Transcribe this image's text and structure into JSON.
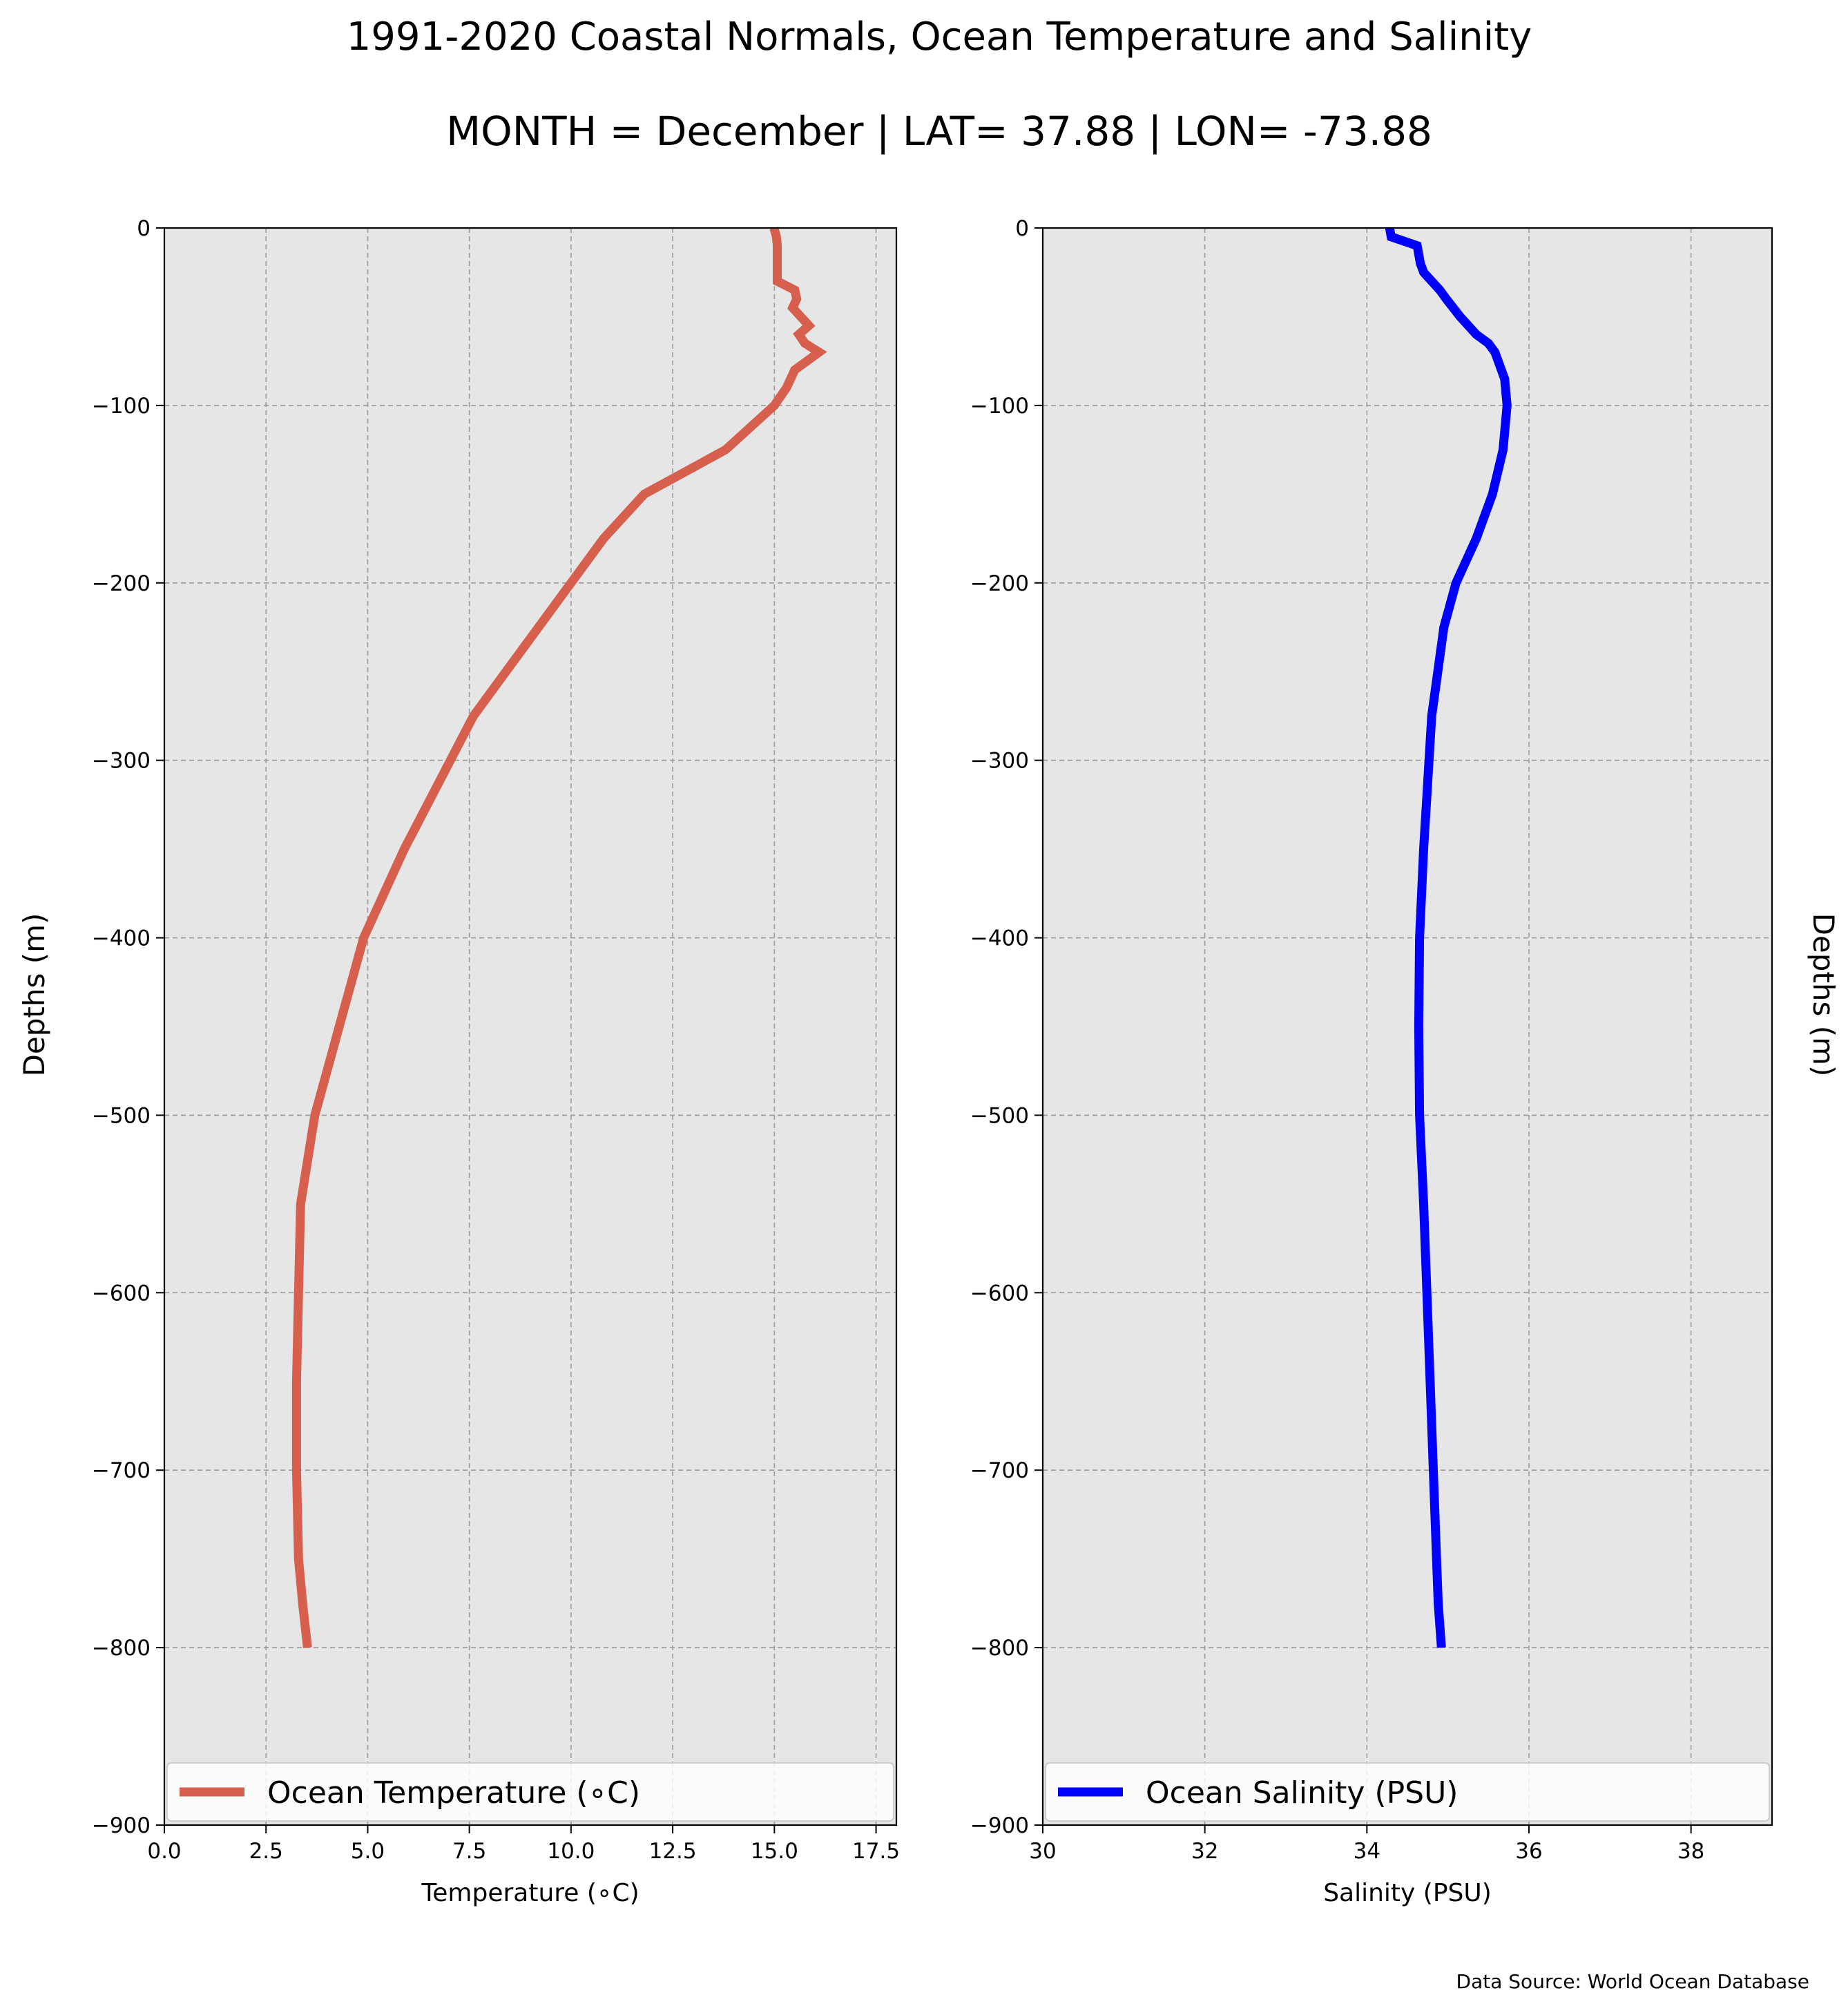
{
  "figure": {
    "title": "1991-2020 Coastal Normals, Ocean Temperature and Salinity",
    "subtitle": "MONTH = December | LAT= 37.88 | LON= -73.88",
    "source_note": "Data Source: World Ocean Database",
    "left_ylabel": "Depths (m)",
    "right_ylabel": "Depths (m)"
  },
  "chart_data": [
    {
      "type": "line",
      "xlabel": "Temperature (∘C)",
      "ylabel": "Depths (m)",
      "xlim": [
        0,
        18
      ],
      "ylim": [
        -900,
        0
      ],
      "xticks": [
        0,
        2.5,
        5,
        7.5,
        10,
        12.5,
        15,
        17.5
      ],
      "xtick_labels": [
        "0.0",
        "2.5",
        "5.0",
        "7.5",
        "10.0",
        "12.5",
        "15.0",
        "17.5"
      ],
      "yticks": [
        0,
        -100,
        -200,
        -300,
        -400,
        -500,
        -600,
        -700,
        -800,
        -900
      ],
      "ytick_labels": [
        "0",
        "−100",
        "−200",
        "−300",
        "−400",
        "−500",
        "−600",
        "−700",
        "−800",
        "−900"
      ],
      "grid": true,
      "legend_position": "lower center",
      "series": [
        {
          "name": "Ocean Temperature (∘C)",
          "color": "#d6604d",
          "x": [
            14.99,
            15.05,
            15.07,
            15.07,
            15.07,
            15.5,
            15.55,
            15.45,
            15.85,
            15.6,
            15.75,
            16.1,
            15.8,
            15.5,
            15.3,
            15.0,
            13.8,
            11.8,
            10.8,
            10.0,
            9.2,
            7.6,
            5.9,
            4.9,
            4.3,
            4.0,
            3.7,
            3.35,
            3.3,
            3.25,
            3.25,
            3.3,
            3.4,
            3.52
          ],
          "y": [
            0,
            -5,
            -10,
            -20,
            -30,
            -35,
            -40,
            -45,
            -55,
            -60,
            -65,
            -70,
            -75,
            -80,
            -90,
            -100,
            -125,
            -150,
            -175,
            -200,
            -225,
            -275,
            -350,
            -400,
            -450,
            -475,
            -500,
            -550,
            -600,
            -650,
            -700,
            -750,
            -775,
            -800
          ]
        }
      ]
    },
    {
      "type": "line",
      "xlabel": "Salinity (PSU)",
      "ylabel": "Depths (m)",
      "xlim": [
        30,
        39
      ],
      "ylim": [
        -900,
        0
      ],
      "xticks": [
        30,
        32,
        34,
        36,
        38
      ],
      "xtick_labels": [
        "30",
        "32",
        "34",
        "36",
        "38"
      ],
      "yticks": [
        0,
        -100,
        -200,
        -300,
        -400,
        -500,
        -600,
        -700,
        -800,
        -900
      ],
      "ytick_labels": [
        "0",
        "−100",
        "−200",
        "−300",
        "−400",
        "−500",
        "−600",
        "−700",
        "−800",
        "−900"
      ],
      "grid": true,
      "legend_position": "lower center",
      "series": [
        {
          "name": "Ocean Salinity (PSU)",
          "color": "#0000ff",
          "x": [
            34.28,
            34.3,
            34.62,
            34.66,
            34.7,
            34.8,
            34.9,
            34.98,
            35.15,
            35.25,
            35.35,
            35.5,
            35.58,
            35.62,
            35.7,
            35.73,
            35.68,
            35.55,
            35.35,
            35.1,
            34.95,
            34.8,
            34.7,
            34.65,
            34.64,
            34.65,
            34.7,
            34.78,
            34.82,
            34.86,
            34.88,
            34.92
          ],
          "y": [
            0,
            -5,
            -10,
            -20,
            -25,
            -30,
            -35,
            -40,
            -50,
            -55,
            -60,
            -65,
            -70,
            -75,
            -85,
            -100,
            -125,
            -150,
            -175,
            -200,
            -225,
            -275,
            -350,
            -400,
            -450,
            -500,
            -550,
            -650,
            -700,
            -750,
            -775,
            -800
          ]
        }
      ]
    }
  ]
}
